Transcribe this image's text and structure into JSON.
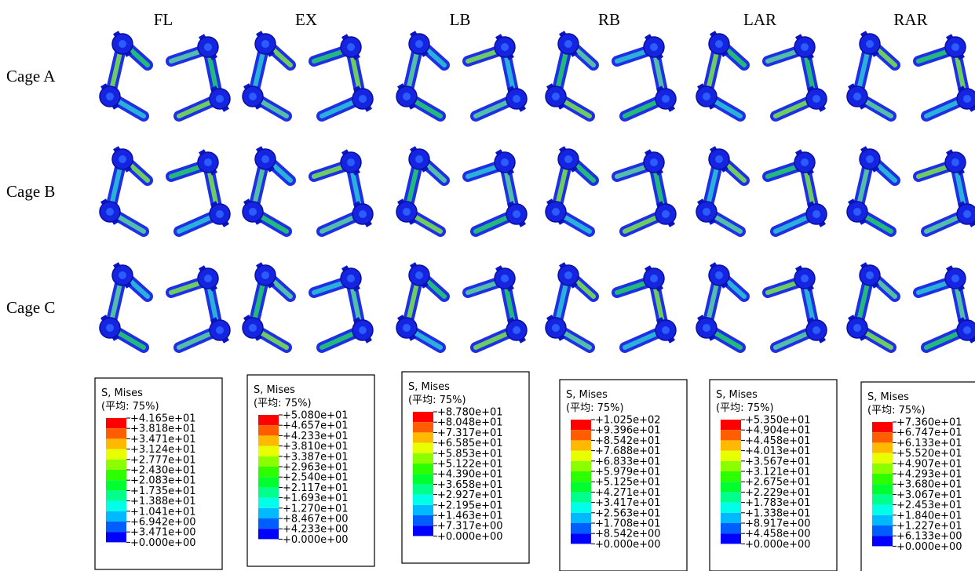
{
  "columns": [
    "FL",
    "EX",
    "LB",
    "RB",
    "LAR",
    "RAR"
  ],
  "rows": [
    "Cage A",
    "Cage B",
    "Cage C"
  ],
  "legends": [
    {
      "title": "S, Mises",
      "subtitle": "(平均: 75%)",
      "labels": [
        "+4.165e+01",
        "+3.818e+01",
        "+3.471e+01",
        "+3.124e+01",
        "+2.777e+01",
        "+2.430e+01",
        "+2.083e+01",
        "+1.735e+01",
        "+1.388e+01",
        "+1.041e+01",
        "+6.942e+00",
        "+3.471e+00",
        "+0.000e+00"
      ]
    },
    {
      "title": "S, Mises",
      "subtitle": "(平均: 75%)",
      "labels": [
        "+5.080e+01",
        "+4.657e+01",
        "+4.233e+01",
        "+3.810e+01",
        "+3.387e+01",
        "+2.963e+01",
        "+2.540e+01",
        "+2.117e+01",
        "+1.693e+01",
        "+1.270e+01",
        "+8.467e+00",
        "+4.233e+00",
        "+0.000e+00"
      ]
    },
    {
      "title": "S, Mises",
      "subtitle": "(平均: 75%)",
      "labels": [
        "+8.780e+01",
        "+8.048e+01",
        "+7.317e+01",
        "+6.585e+01",
        "+5.853e+01",
        "+5.122e+01",
        "+4.390e+01",
        "+3.658e+01",
        "+2.927e+01",
        "+2.195e+01",
        "+1.463e+01",
        "+7.317e+00",
        "+0.000e+00"
      ]
    },
    {
      "title": "S, Mises",
      "subtitle": "(平均: 75%)",
      "labels": [
        "+1.025e+02",
        "+9.396e+01",
        "+8.542e+01",
        "+7.688e+01",
        "+6.833e+01",
        "+5.979e+01",
        "+5.125e+01",
        "+4.271e+01",
        "+3.417e+01",
        "+2.563e+01",
        "+1.708e+01",
        "+8.542e+00",
        "+0.000e+00"
      ]
    },
    {
      "title": "S, Mises",
      "subtitle": "(平均: 75%)",
      "labels": [
        "+5.350e+01",
        "+4.904e+01",
        "+4.458e+01",
        "+4.013e+01",
        "+3.567e+01",
        "+3.121e+01",
        "+2.675e+01",
        "+2.229e+01",
        "+1.783e+01",
        "+1.338e+01",
        "+8.917e+00",
        "+4.458e+00",
        "+0.000e+00"
      ]
    },
    {
      "title": "S, Mises",
      "subtitle": "(平均: 75%)",
      "labels": [
        "+7.360e+01",
        "+6.747e+01",
        "+6.133e+01",
        "+5.520e+01",
        "+4.907e+01",
        "+4.293e+01",
        "+3.680e+01",
        "+3.067e+01",
        "+2.453e+01",
        "+1.840e+01",
        "+1.227e+01",
        "+6.133e+00",
        "+0.000e+00"
      ]
    }
  ]
}
